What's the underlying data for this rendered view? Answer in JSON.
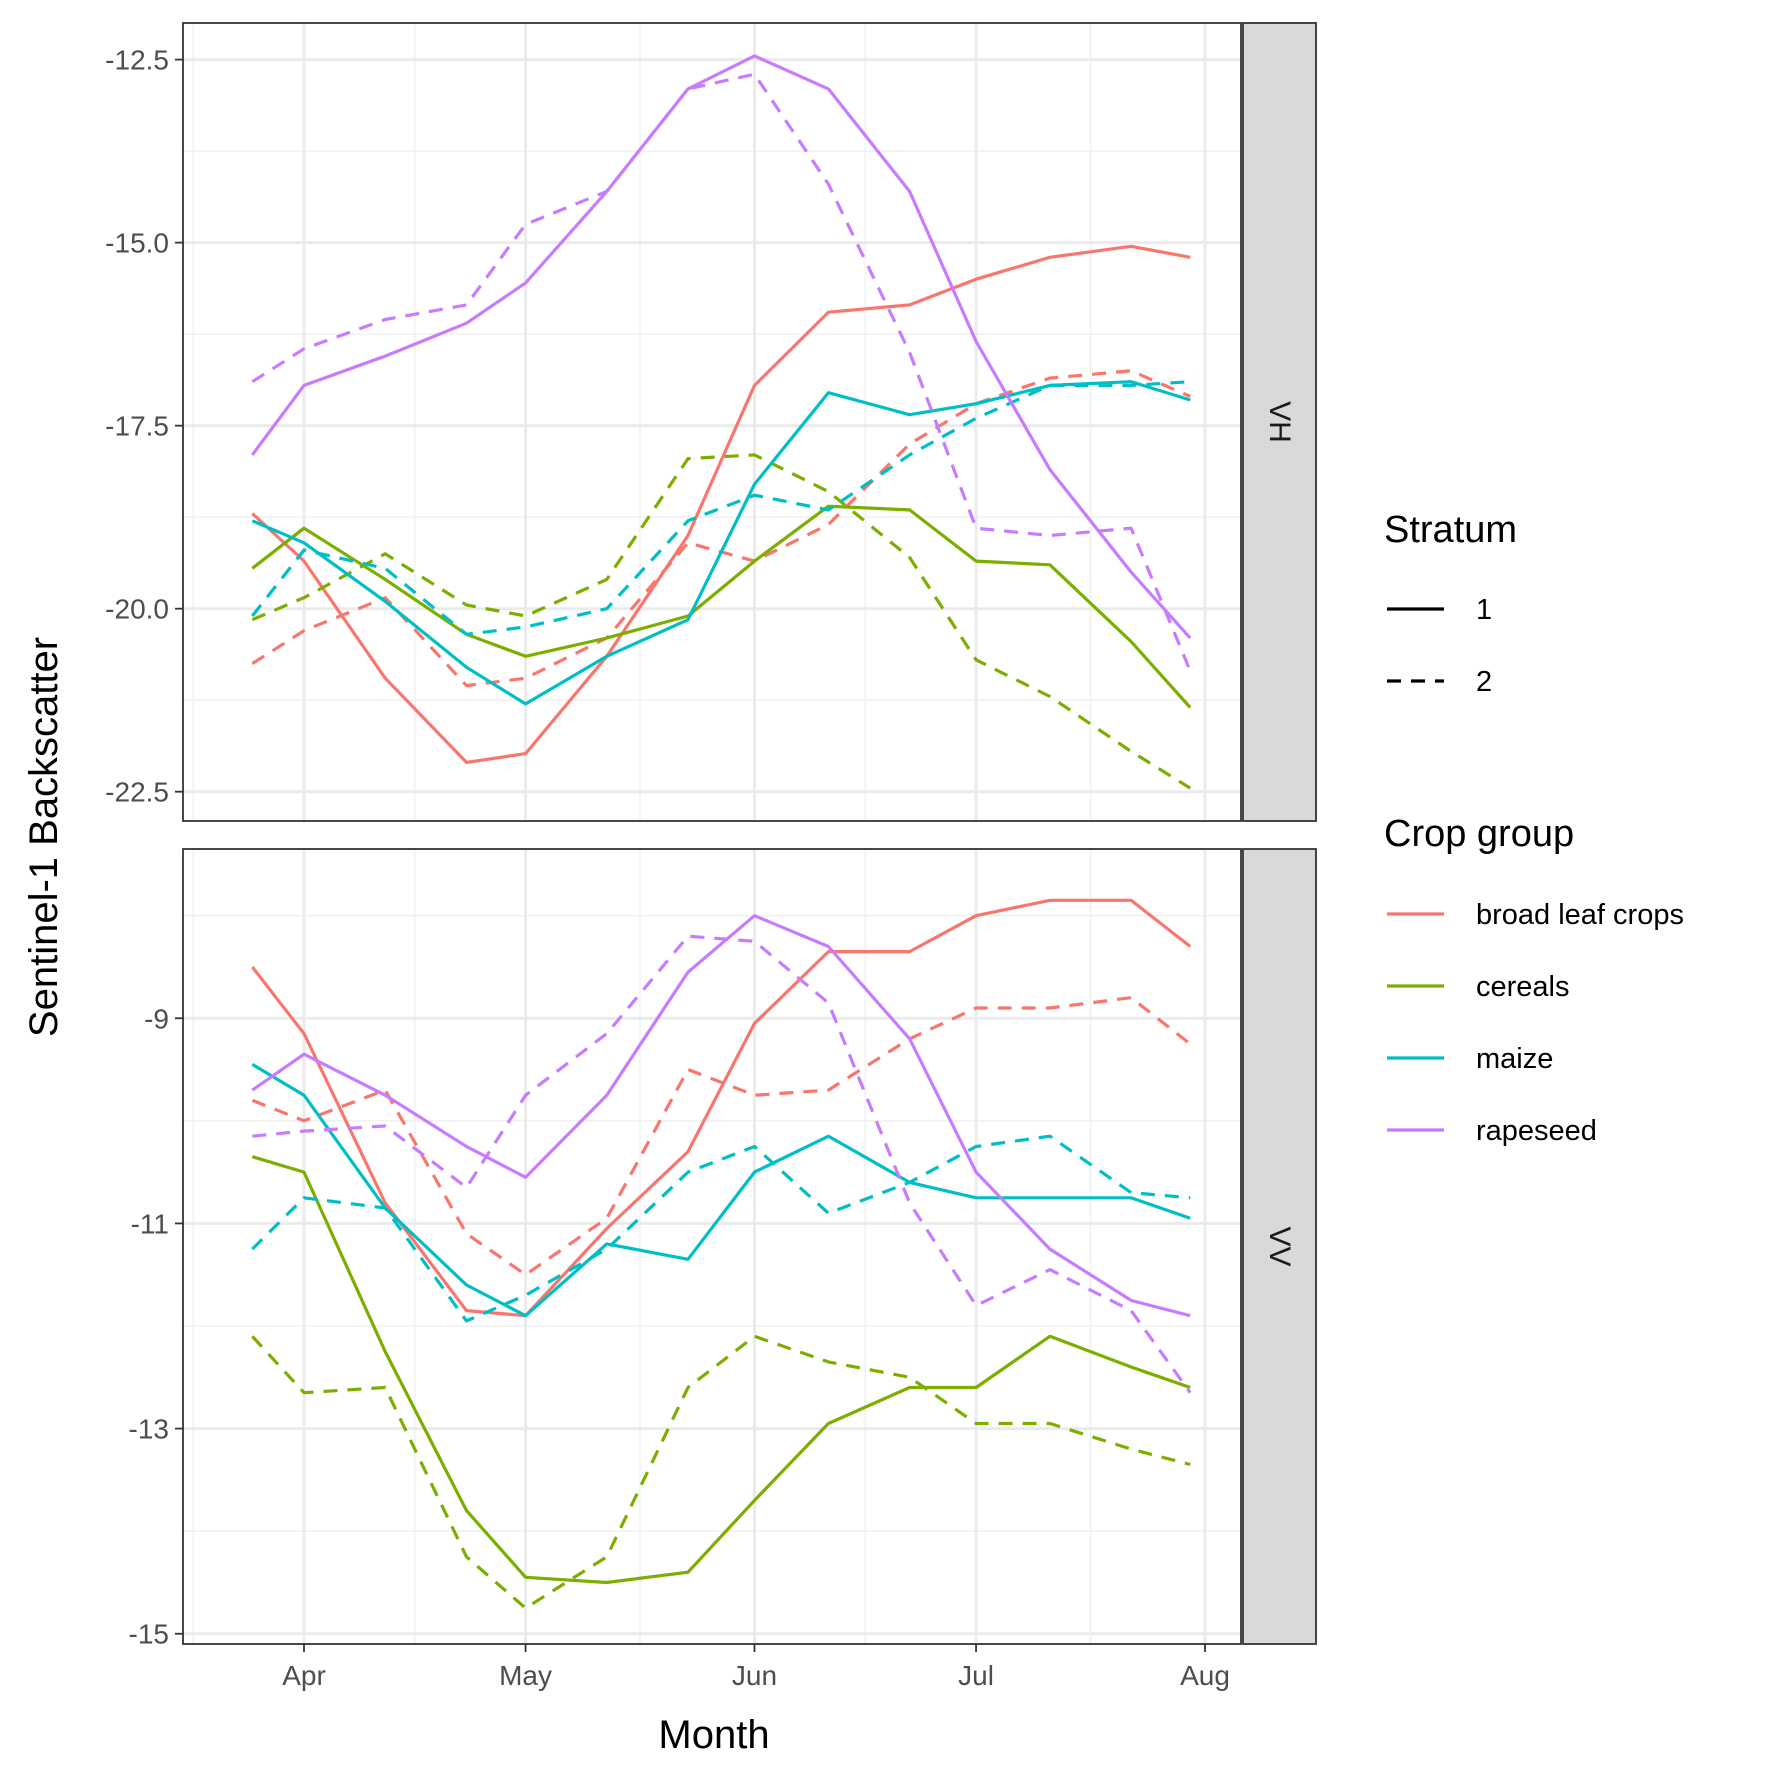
{
  "chart_data": {
    "type": "line",
    "xlabel": "Month",
    "ylabel": "Sentinel-1 Backscatter",
    "x_axis": {
      "ticks": [
        "Apr",
        "May",
        "Jun",
        "Jul",
        "Aug"
      ],
      "tick_dates": [
        "04-01",
        "05-01",
        "06-01",
        "07-01",
        "08-01"
      ]
    },
    "x_dates": [
      "03-25",
      "04-01",
      "04-12",
      "04-23",
      "05-01",
      "05-12",
      "05-23",
      "06-01",
      "06-11",
      "06-22",
      "07-01",
      "07-11",
      "07-22",
      "07-30"
    ],
    "legend": [
      {
        "title": "Stratum",
        "entries": [
          {
            "label": "1",
            "dash": "solid"
          },
          {
            "label": "2",
            "dash": "dashed"
          }
        ]
      },
      {
        "title": "Crop group",
        "entries": [
          {
            "label": "broad leaf crops",
            "color": "#F8766D"
          },
          {
            "label": "cereals",
            "color": "#7CAE00"
          },
          {
            "label": "maize",
            "color": "#00BFC4"
          },
          {
            "label": "rapeseed",
            "color": "#C77CFF"
          }
        ]
      }
    ],
    "panels": [
      {
        "strip_label": "VH",
        "y_ticks": [
          "-12.5",
          "-15.0",
          "-17.5",
          "-20.0",
          "-22.5"
        ],
        "y_tick_values": [
          -12.5,
          -15.0,
          -17.5,
          -20.0,
          -22.5
        ],
        "ylim": [
          -22.9,
          -12.0
        ],
        "series": [
          {
            "crop": "broad leaf crops",
            "stratum": "1",
            "color": "#F8766D",
            "values": [
              -18.7,
              -19.35,
              -20.95,
              -22.1,
              -21.98,
              -20.65,
              -19.0,
              -16.95,
              -15.95,
              -15.85,
              -15.5,
              -15.2,
              -15.05,
              -15.2
            ]
          },
          {
            "crop": "broad leaf crops",
            "stratum": "2",
            "color": "#F8766D",
            "values": [
              -20.75,
              -20.3,
              -19.85,
              -21.05,
              -20.95,
              -20.4,
              -19.1,
              -19.35,
              -18.85,
              -17.75,
              -17.2,
              -16.85,
              -16.75,
              -17.1
            ]
          },
          {
            "crop": "cereals",
            "stratum": "1",
            "color": "#7CAE00",
            "values": [
              -19.45,
              -18.9,
              -19.6,
              -20.35,
              -20.65,
              -20.4,
              -20.1,
              -19.35,
              -18.6,
              -18.65,
              -19.35,
              -19.4,
              -20.45,
              -21.35
            ]
          },
          {
            "crop": "cereals",
            "stratum": "2",
            "color": "#7CAE00",
            "values": [
              -20.15,
              -19.85,
              -19.25,
              -19.95,
              -20.1,
              -19.6,
              -17.95,
              -17.9,
              -18.4,
              -19.3,
              -20.7,
              -21.2,
              -21.95,
              -22.45
            ]
          },
          {
            "crop": "maize",
            "stratum": "1",
            "color": "#00BFC4",
            "values": [
              -18.8,
              -19.1,
              -19.9,
              -20.8,
              -21.3,
              -20.65,
              -20.15,
              -18.3,
              -17.05,
              -17.35,
              -17.2,
              -16.95,
              -16.9,
              -17.15
            ]
          },
          {
            "crop": "maize",
            "stratum": "2",
            "color": "#00BFC4",
            "values": [
              -20.1,
              -19.2,
              -19.45,
              -20.35,
              -20.25,
              -20.0,
              -18.8,
              -18.45,
              -18.65,
              -17.9,
              -17.4,
              -16.95,
              -16.95,
              -16.9
            ]
          },
          {
            "crop": "rapeseed",
            "stratum": "1",
            "color": "#C77CFF",
            "values": [
              -17.9,
              -16.95,
              -16.55,
              -16.1,
              -15.55,
              -14.3,
              -12.9,
              -12.45,
              -12.9,
              -14.3,
              -16.35,
              -18.1,
              -19.5,
              -20.4
            ]
          },
          {
            "crop": "rapeseed",
            "stratum": "2",
            "color": "#C77CFF",
            "values": [
              -16.9,
              -16.45,
              -16.05,
              -15.85,
              -14.75,
              -14.3,
              -12.9,
              -12.7,
              -14.2,
              -16.5,
              -18.9,
              -19.0,
              -18.9,
              -20.85
            ]
          }
        ]
      },
      {
        "strip_label": "VV",
        "y_ticks": [
          "-9",
          "-11",
          "-13",
          "-15"
        ],
        "y_tick_values": [
          -9,
          -11,
          -13,
          -15
        ],
        "ylim": [
          -15.1,
          -7.35
        ],
        "series": [
          {
            "crop": "broad leaf crops",
            "stratum": "1",
            "color": "#F8766D",
            "values": [
              -8.5,
              -9.15,
              -10.8,
              -11.85,
              -11.9,
              -11.05,
              -10.3,
              -9.05,
              -8.35,
              -8.35,
              -8.0,
              -7.85,
              -7.85,
              -8.3
            ]
          },
          {
            "crop": "broad leaf crops",
            "stratum": "2",
            "color": "#F8766D",
            "values": [
              -9.8,
              -10.0,
              -9.7,
              -11.1,
              -11.5,
              -10.95,
              -9.5,
              -9.75,
              -9.7,
              -9.2,
              -8.9,
              -8.9,
              -8.8,
              -9.25
            ]
          },
          {
            "crop": "cereals",
            "stratum": "1",
            "color": "#7CAE00",
            "values": [
              -10.35,
              -10.5,
              -12.25,
              -13.8,
              -14.45,
              -14.5,
              -14.4,
              -13.7,
              -12.95,
              -12.6,
              -12.6,
              -12.1,
              -12.4,
              -12.6
            ]
          },
          {
            "crop": "cereals",
            "stratum": "2",
            "color": "#7CAE00",
            "values": [
              -12.1,
              -12.65,
              -12.6,
              -14.25,
              -14.75,
              -14.25,
              -12.6,
              -12.1,
              -12.35,
              -12.5,
              -12.95,
              -12.95,
              -13.2,
              -13.35
            ]
          },
          {
            "crop": "maize",
            "stratum": "1",
            "color": "#00BFC4",
            "values": [
              -9.45,
              -9.75,
              -10.85,
              -11.6,
              -11.9,
              -11.2,
              -11.35,
              -10.5,
              -10.15,
              -10.6,
              -10.75,
              -10.75,
              -10.75,
              -10.95
            ]
          },
          {
            "crop": "maize",
            "stratum": "2",
            "color": "#00BFC4",
            "values": [
              -11.25,
              -10.75,
              -10.85,
              -11.95,
              -11.7,
              -11.25,
              -10.5,
              -10.25,
              -10.9,
              -10.6,
              -10.25,
              -10.15,
              -10.7,
              -10.75
            ]
          },
          {
            "crop": "rapeseed",
            "stratum": "1",
            "color": "#C77CFF",
            "values": [
              -9.7,
              -9.35,
              -9.75,
              -10.25,
              -10.55,
              -9.75,
              -8.55,
              -8.0,
              -8.3,
              -9.2,
              -10.5,
              -11.25,
              -11.75,
              -11.9
            ]
          },
          {
            "crop": "rapeseed",
            "stratum": "2",
            "color": "#C77CFF",
            "values": [
              -10.15,
              -10.1,
              -10.05,
              -10.65,
              -9.75,
              -9.15,
              -8.2,
              -8.25,
              -8.85,
              -10.8,
              -11.8,
              -11.45,
              -11.85,
              -12.65
            ]
          }
        ]
      }
    ]
  }
}
